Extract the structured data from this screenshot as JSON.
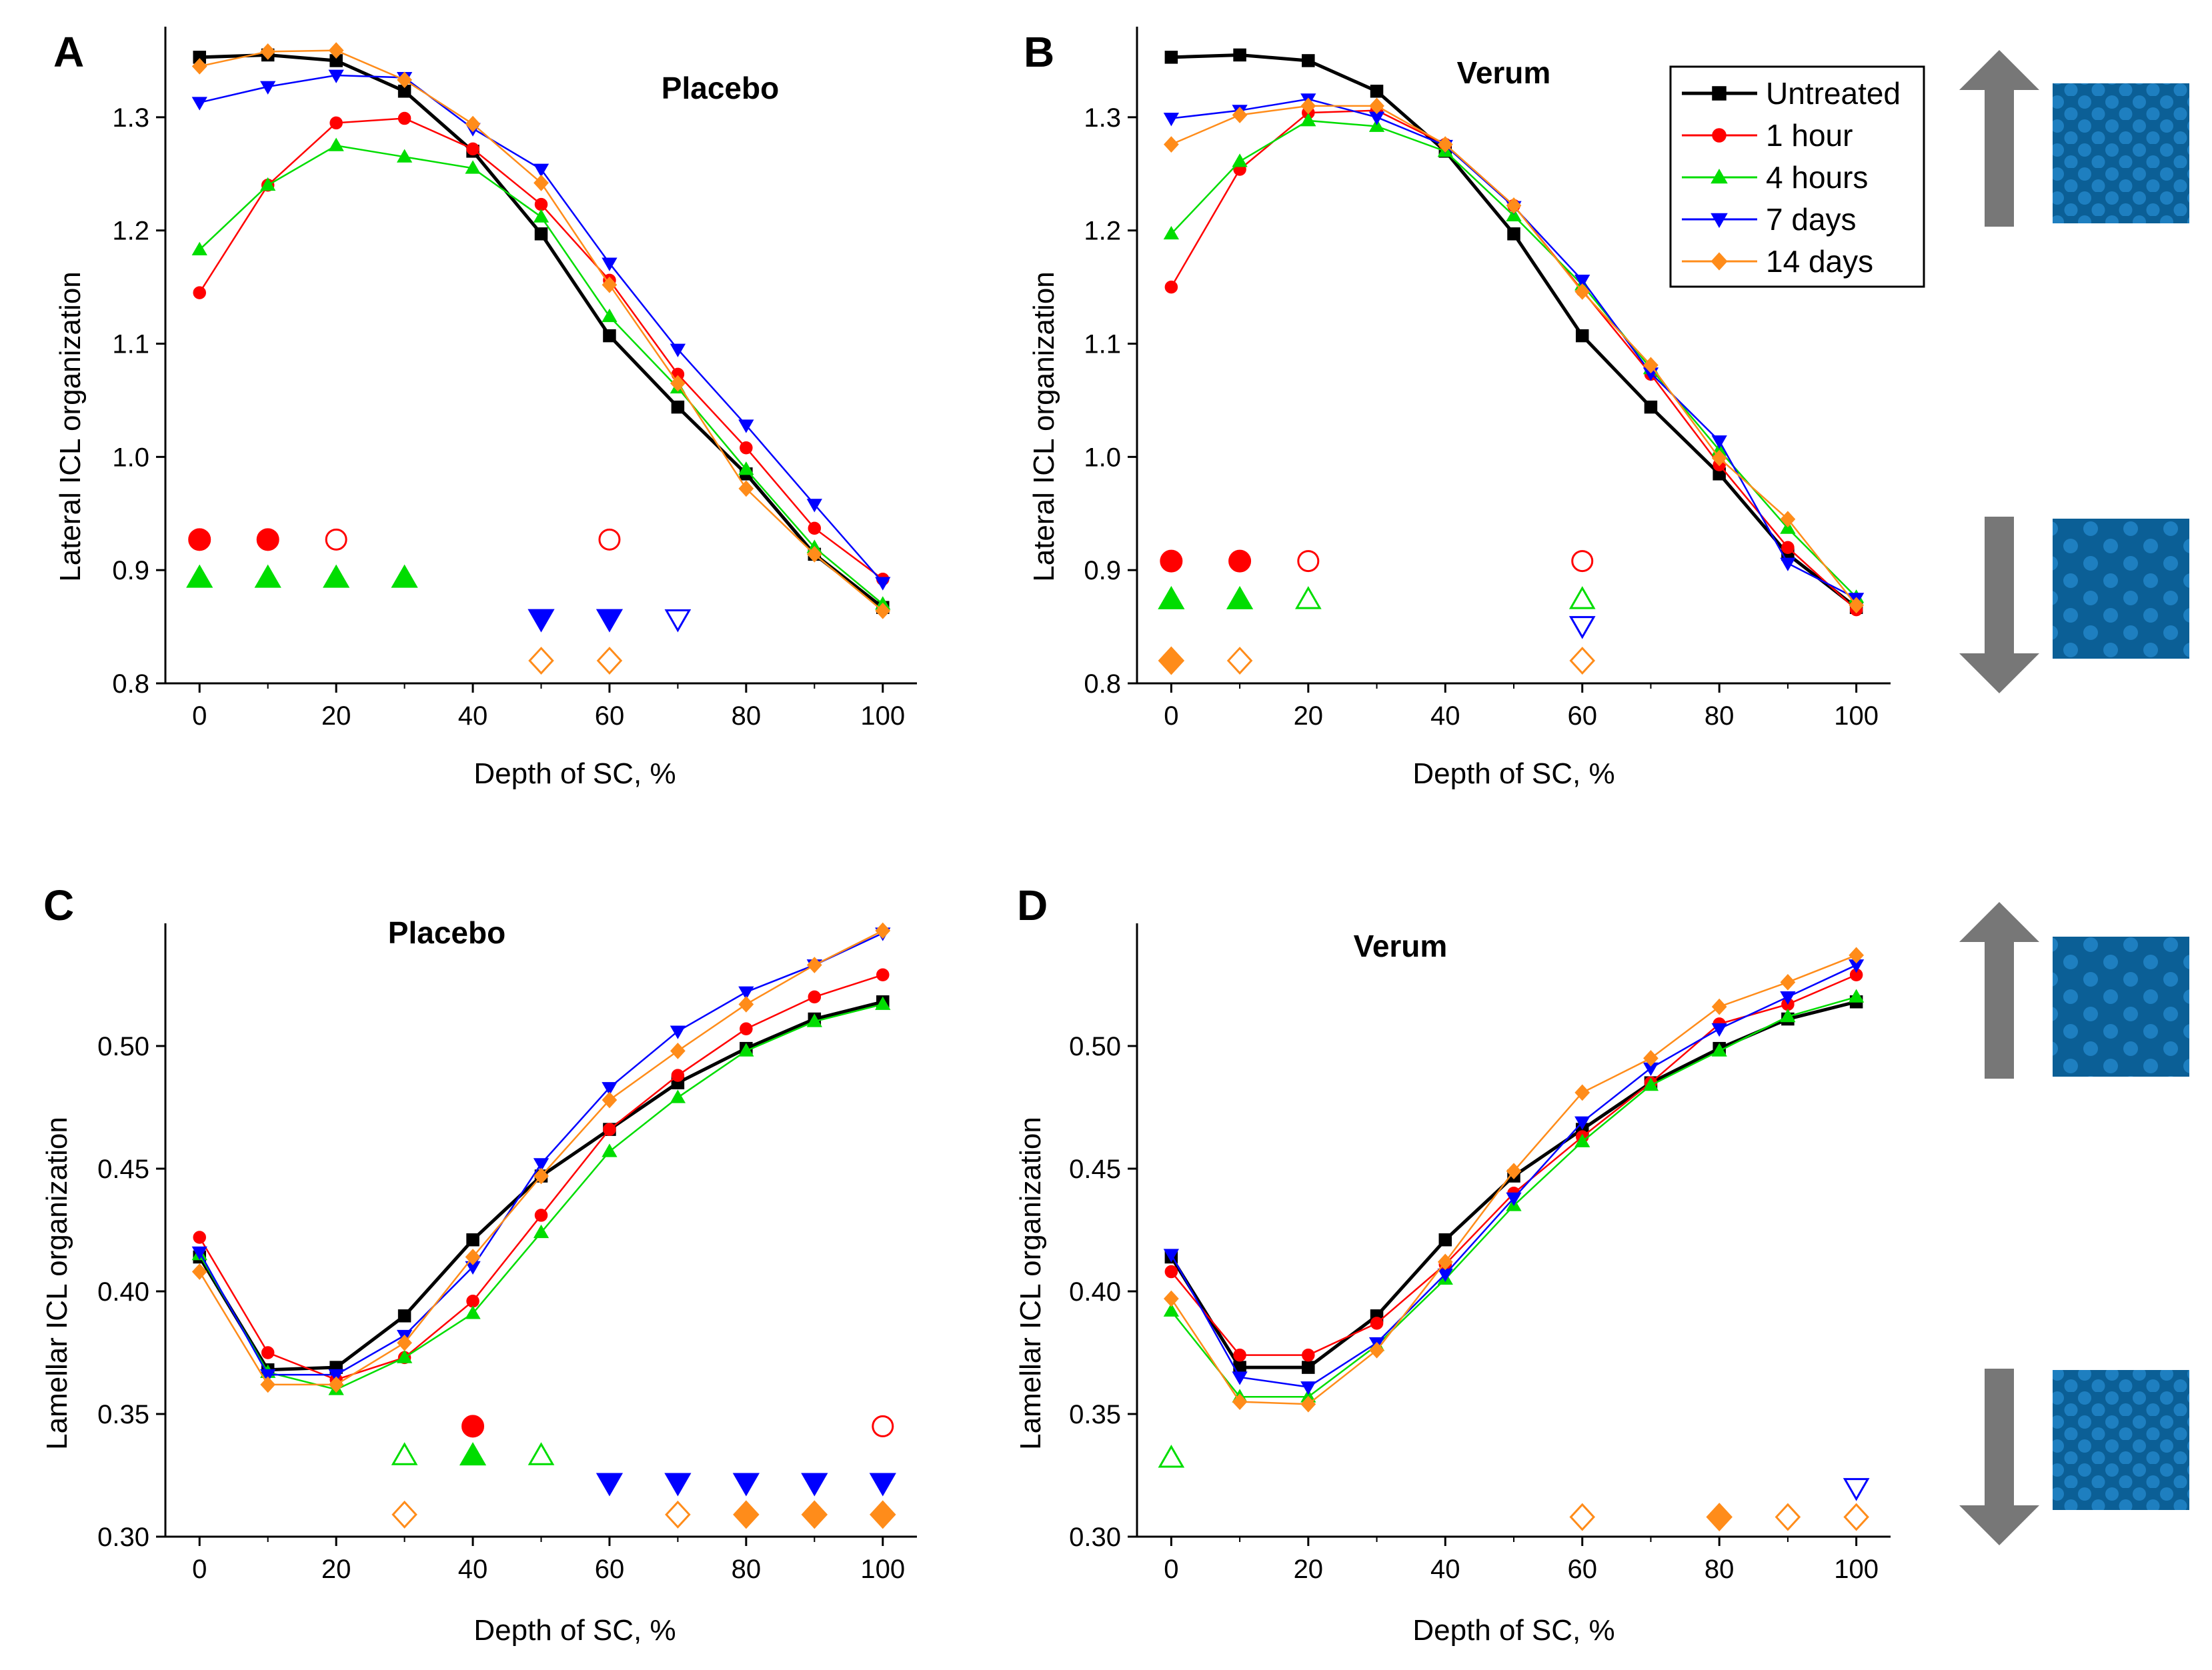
{
  "colors": {
    "untreated": "#000000",
    "hour1": "#ff0000",
    "hours4": "#00dd00",
    "days7": "#0000ff",
    "days14": "#ff8c1a",
    "arrow": "#777777",
    "schematic_bg": "#0b5f96",
    "schematic_ball": "#1e7fc0"
  },
  "legend": {
    "entries": [
      "Untreated",
      "1 hour",
      "4 hours",
      "7 days",
      "14 days"
    ],
    "placement": "top-right of panel B"
  },
  "icons": {
    "up": "up-arrow-icon",
    "down": "down-arrow-icon",
    "dense": "dense-packing-schematic-icon",
    "loose": "loose-packing-schematic-icon"
  },
  "chart_data": [
    {
      "panel": "A",
      "type": "line",
      "title": "Placebo",
      "xlabel": "Depth of SC, %",
      "ylabel": "Lateral ICL organization",
      "x": [
        0,
        10,
        20,
        30,
        40,
        50,
        60,
        70,
        80,
        90,
        100
      ],
      "xlim": [
        -5,
        105
      ],
      "ylim": [
        0.8,
        1.38
      ],
      "xticks": [
        "0",
        "20",
        "40",
        "60",
        "80",
        "100"
      ],
      "yticks": [
        "0.8",
        "0.9",
        "1.0",
        "1.1",
        "1.2",
        "1.3"
      ],
      "series": [
        {
          "name": "Untreated",
          "values": [
            1.353,
            1.355,
            1.35,
            1.323,
            1.27,
            1.197,
            1.107,
            1.044,
            0.985,
            0.914,
            0.867
          ]
        },
        {
          "name": "1 hour",
          "values": [
            1.145,
            1.24,
            1.295,
            1.299,
            1.272,
            1.223,
            1.156,
            1.073,
            1.008,
            0.937,
            0.892
          ]
        },
        {
          "name": "4 hours",
          "values": [
            1.183,
            1.24,
            1.275,
            1.265,
            1.255,
            1.212,
            1.124,
            1.061,
            0.989,
            0.92,
            0.87
          ]
        },
        {
          "name": "7 days",
          "values": [
            1.313,
            1.327,
            1.337,
            1.335,
            1.29,
            1.254,
            1.171,
            1.095,
            1.028,
            0.958,
            0.889
          ]
        },
        {
          "name": "14 days",
          "values": [
            1.345,
            1.358,
            1.359,
            1.333,
            1.294,
            1.242,
            1.152,
            1.065,
            0.972,
            0.914,
            0.864
          ]
        }
      ],
      "significance": [
        {
          "series": "1 hour",
          "level": 0.927,
          "filled": [
            0,
            10
          ],
          "open": [
            20,
            60
          ]
        },
        {
          "series": "4 hours",
          "level": 0.893,
          "filled": [
            0,
            10,
            20,
            30
          ],
          "open": []
        },
        {
          "series": "7 days",
          "level": 0.857,
          "filled": [
            50,
            60
          ],
          "open": [
            70
          ]
        },
        {
          "series": "14 days",
          "level": 0.82,
          "filled": [],
          "open": [
            50,
            60
          ]
        }
      ]
    },
    {
      "panel": "B",
      "type": "line",
      "title": "Verum",
      "xlabel": "Depth of SC, %",
      "ylabel": "Lateral ICL organization",
      "x": [
        0,
        10,
        20,
        30,
        40,
        50,
        60,
        70,
        80,
        90,
        100
      ],
      "xlim": [
        -5,
        105
      ],
      "ylim": [
        0.8,
        1.38
      ],
      "xticks": [
        "0",
        "20",
        "40",
        "60",
        "80",
        "100"
      ],
      "yticks": [
        "0.8",
        "0.9",
        "1.0",
        "1.1",
        "1.2",
        "1.3"
      ],
      "series": [
        {
          "name": "Untreated",
          "values": [
            1.353,
            1.355,
            1.35,
            1.323,
            1.27,
            1.197,
            1.107,
            1.044,
            0.985,
            0.914,
            0.867
          ]
        },
        {
          "name": "1 hour",
          "values": [
            1.15,
            1.254,
            1.304,
            1.306,
            1.276,
            1.222,
            1.147,
            1.073,
            0.993,
            0.92,
            0.865
          ]
        },
        {
          "name": "4 hours",
          "values": [
            1.197,
            1.261,
            1.297,
            1.292,
            1.27,
            1.213,
            1.152,
            1.078,
            1.006,
            0.937,
            0.876
          ]
        },
        {
          "name": "7 days",
          "values": [
            1.299,
            1.306,
            1.316,
            1.3,
            1.275,
            1.221,
            1.156,
            1.074,
            1.014,
            0.906,
            0.875
          ]
        },
        {
          "name": "14 days",
          "values": [
            1.276,
            1.302,
            1.31,
            1.31,
            1.276,
            1.222,
            1.146,
            1.081,
            0.999,
            0.945,
            0.869
          ]
        }
      ],
      "significance": [
        {
          "series": "1 hour",
          "level": 0.908,
          "filled": [
            0,
            10
          ],
          "open": [
            20,
            60
          ]
        },
        {
          "series": "4 hours",
          "level": 0.874,
          "filled": [
            0,
            10
          ],
          "open": [
            20,
            60
          ]
        },
        {
          "series": "7 days",
          "level": 0.851,
          "filled": [],
          "open": [
            60
          ]
        },
        {
          "series": "14 days",
          "level": 0.82,
          "filled": [
            0
          ],
          "open": [
            10,
            60
          ]
        }
      ]
    },
    {
      "panel": "C",
      "type": "line",
      "title": "Placebo",
      "xlabel": "Depth of SC, %",
      "ylabel": "Lamellar ICL organization",
      "x": [
        0,
        10,
        20,
        30,
        40,
        50,
        60,
        70,
        80,
        90,
        100
      ],
      "xlim": [
        -5,
        105
      ],
      "ylim": [
        0.3,
        0.55
      ],
      "xticks": [
        "0",
        "20",
        "40",
        "60",
        "80",
        "100"
      ],
      "yticks": [
        "0.30",
        "0.35",
        "0.40",
        "0.45",
        "0.50"
      ],
      "series": [
        {
          "name": "Untreated",
          "values": [
            0.414,
            0.368,
            0.369,
            0.39,
            0.421,
            0.447,
            0.466,
            0.485,
            0.499,
            0.511,
            0.518
          ]
        },
        {
          "name": "1 hour",
          "values": [
            0.422,
            0.375,
            0.364,
            0.373,
            0.396,
            0.431,
            0.466,
            0.488,
            0.507,
            0.52,
            0.529
          ]
        },
        {
          "name": "4 hours",
          "values": [
            0.415,
            0.367,
            0.36,
            0.373,
            0.391,
            0.424,
            0.457,
            0.479,
            0.498,
            0.51,
            0.517
          ]
        },
        {
          "name": "7 days",
          "values": [
            0.416,
            0.366,
            0.366,
            0.382,
            0.41,
            0.452,
            0.483,
            0.506,
            0.522,
            0.533,
            0.546
          ]
        },
        {
          "name": "14 days",
          "values": [
            0.408,
            0.362,
            0.362,
            0.379,
            0.414,
            0.447,
            0.478,
            0.498,
            0.517,
            0.533,
            0.547
          ]
        }
      ],
      "significance": [
        {
          "series": "1 hour",
          "level": 0.345,
          "filled": [
            40
          ],
          "open": [
            100
          ]
        },
        {
          "series": "4 hours",
          "level": 0.333,
          "filled": [
            40
          ],
          "open": [
            30,
            50
          ]
        },
        {
          "series": "7 days",
          "level": 0.322,
          "filled": [
            60,
            70,
            80,
            90,
            100
          ],
          "open": []
        },
        {
          "series": "14 days",
          "level": 0.309,
          "filled": [
            80,
            90,
            100
          ],
          "open": [
            30,
            70
          ]
        }
      ]
    },
    {
      "panel": "D",
      "type": "line",
      "title": "Verum",
      "xlabel": "Depth of SC, %",
      "ylabel": "Lamellar ICL organization",
      "x": [
        0,
        10,
        20,
        30,
        40,
        50,
        60,
        70,
        80,
        90,
        100
      ],
      "xlim": [
        -5,
        105
      ],
      "ylim": [
        0.3,
        0.55
      ],
      "xticks": [
        "0",
        "20",
        "40",
        "60",
        "80",
        "100"
      ],
      "yticks": [
        "0.30",
        "0.35",
        "0.40",
        "0.45",
        "0.50"
      ],
      "series": [
        {
          "name": "Untreated",
          "values": [
            0.414,
            0.369,
            0.369,
            0.39,
            0.421,
            0.447,
            0.466,
            0.485,
            0.499,
            0.511,
            0.518
          ]
        },
        {
          "name": "1 hour",
          "values": [
            0.408,
            0.374,
            0.374,
            0.387,
            0.411,
            0.44,
            0.463,
            0.485,
            0.509,
            0.517,
            0.529
          ]
        },
        {
          "name": "4 hours",
          "values": [
            0.392,
            0.357,
            0.357,
            0.378,
            0.405,
            0.435,
            0.461,
            0.484,
            0.498,
            0.512,
            0.52
          ]
        },
        {
          "name": "7 days",
          "values": [
            0.415,
            0.365,
            0.361,
            0.379,
            0.407,
            0.438,
            0.469,
            0.491,
            0.507,
            0.52,
            0.533
          ]
        },
        {
          "name": "14 days",
          "values": [
            0.397,
            0.355,
            0.354,
            0.376,
            0.412,
            0.449,
            0.481,
            0.495,
            0.516,
            0.526,
            0.537
          ]
        }
      ],
      "significance": [
        {
          "series": "4 hours",
          "level": 0.332,
          "filled": [],
          "open": [
            0
          ]
        },
        {
          "series": "7 days",
          "level": 0.32,
          "filled": [],
          "open": [
            100
          ]
        },
        {
          "series": "14 days",
          "level": 0.308,
          "filled": [
            80
          ],
          "open": [
            60,
            90,
            100
          ]
        }
      ]
    }
  ]
}
